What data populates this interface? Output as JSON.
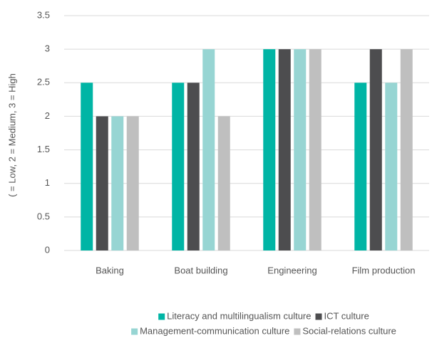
{
  "chart_data": {
    "type": "bar",
    "y_label": "( = Low, 2 = Medium, 3 = High",
    "categories": [
      "Baking",
      "Boat building",
      "Engineering",
      "Film production"
    ],
    "series": [
      {
        "name": "Literacy and multilingualism culture",
        "color": "#00b5a5",
        "values": [
          2.5,
          2.5,
          3,
          2.5
        ]
      },
      {
        "name": "ICT culture",
        "color": "#4d4d4f",
        "values": [
          2,
          2.5,
          3,
          3
        ]
      },
      {
        "name": "Management-communication culture",
        "color": "#97d5d3",
        "values": [
          2,
          3,
          3,
          2.5
        ]
      },
      {
        "name": "Social-relations culture",
        "color": "#bfbfbf",
        "values": [
          2,
          2,
          3,
          3
        ]
      }
    ],
    "ylim": [
      0,
      3.5
    ],
    "yticks": [
      0,
      0.5,
      1,
      1.5,
      2,
      2.5,
      3,
      3.5
    ],
    "grid": true,
    "legend": "bottom"
  }
}
